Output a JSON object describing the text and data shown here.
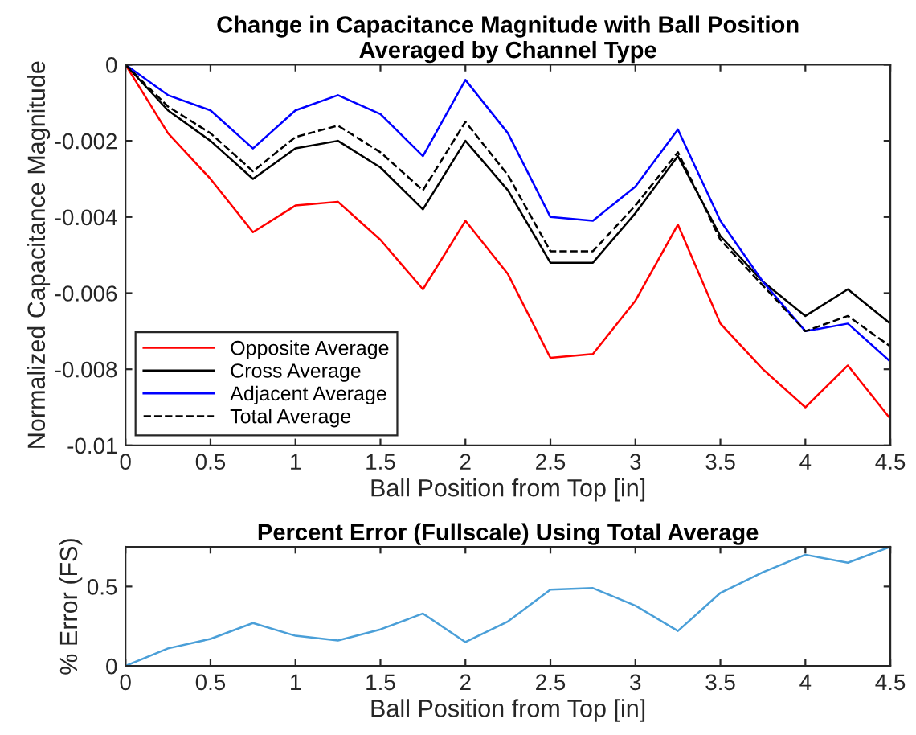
{
  "chart_data": [
    {
      "type": "line",
      "title": "Change in Capacitance Magnitude with Ball Position\nAveraged by Channel Type",
      "xlabel": "Ball Position from Top [in]",
      "ylabel": "Normalized Capacitance Magnitude",
      "x": [
        0,
        0.25,
        0.5,
        0.75,
        1,
        1.25,
        1.5,
        1.75,
        2,
        2.25,
        2.5,
        2.75,
        3,
        3.25,
        3.5,
        3.75,
        4,
        4.25,
        4.5
      ],
      "series": [
        {
          "name": "Opposite Average",
          "color": "#ff0000",
          "line_style": "solid",
          "values": [
            0,
            -0.0018,
            -0.003,
            -0.0044,
            -0.0037,
            -0.0036,
            -0.0046,
            -0.0059,
            -0.0041,
            -0.0055,
            -0.0077,
            -0.0076,
            -0.0062,
            -0.0042,
            -0.0068,
            -0.008,
            -0.009,
            -0.0079,
            -0.0093
          ]
        },
        {
          "name": "Cross Average",
          "color": "#000000",
          "line_style": "solid",
          "values": [
            0,
            -0.0012,
            -0.002,
            -0.003,
            -0.0022,
            -0.002,
            -0.0027,
            -0.0038,
            -0.002,
            -0.0033,
            -0.0052,
            -0.0052,
            -0.0039,
            -0.0024,
            -0.0045,
            -0.0057,
            -0.0066,
            -0.0059,
            -0.0068
          ]
        },
        {
          "name": "Adjacent Average",
          "color": "#0000ff",
          "line_style": "solid",
          "values": [
            0,
            -0.0008,
            -0.0012,
            -0.0022,
            -0.0012,
            -0.0008,
            -0.0013,
            -0.0024,
            -0.0004,
            -0.0018,
            -0.004,
            -0.0041,
            -0.0032,
            -0.0017,
            -0.0041,
            -0.0057,
            -0.007,
            -0.0068,
            -0.0078
          ]
        },
        {
          "name": "Total Average",
          "color": "#000000",
          "line_style": "dashed",
          "values": [
            0,
            -0.0011,
            -0.0018,
            -0.0028,
            -0.0019,
            -0.0016,
            -0.0023,
            -0.0033,
            -0.0015,
            -0.0029,
            -0.0049,
            -0.0049,
            -0.0037,
            -0.0023,
            -0.0046,
            -0.0058,
            -0.007,
            -0.0066,
            -0.0074
          ]
        }
      ],
      "xlim": [
        0,
        4.5
      ],
      "xticks": [
        0,
        0.5,
        1,
        1.5,
        2,
        2.5,
        3,
        3.5,
        4,
        4.5
      ],
      "ylim": [
        -0.01,
        0
      ],
      "yticks": [
        -0.01,
        -0.008,
        -0.006,
        -0.004,
        -0.002,
        0
      ],
      "grid": false,
      "legend": "bottom left"
    },
    {
      "type": "line",
      "title": "Percent Error (Fullscale) Using Total Average",
      "xlabel": "Ball Position from Top [in]",
      "ylabel": "% Error (FS)",
      "x": [
        0,
        0.25,
        0.5,
        0.75,
        1,
        1.25,
        1.5,
        1.75,
        2,
        2.25,
        2.5,
        2.75,
        3,
        3.25,
        3.5,
        3.75,
        4,
        4.25,
        4.5
      ],
      "series": [
        {
          "color": "#4a9fd8",
          "values": [
            0,
            0.11,
            0.17,
            0.27,
            0.19,
            0.16,
            0.23,
            0.33,
            0.15,
            0.28,
            0.48,
            0.49,
            0.38,
            0.22,
            0.46,
            0.59,
            0.7,
            0.65,
            0.75
          ]
        }
      ],
      "xlim": [
        0,
        4.5
      ],
      "xticks": [
        0,
        0.5,
        1,
        1.5,
        2,
        2.5,
        3,
        3.5,
        4,
        4.5
      ],
      "ylim": [
        0,
        0.75
      ],
      "yticks": [
        0,
        0.5
      ],
      "grid": false,
      "legend": false
    }
  ]
}
